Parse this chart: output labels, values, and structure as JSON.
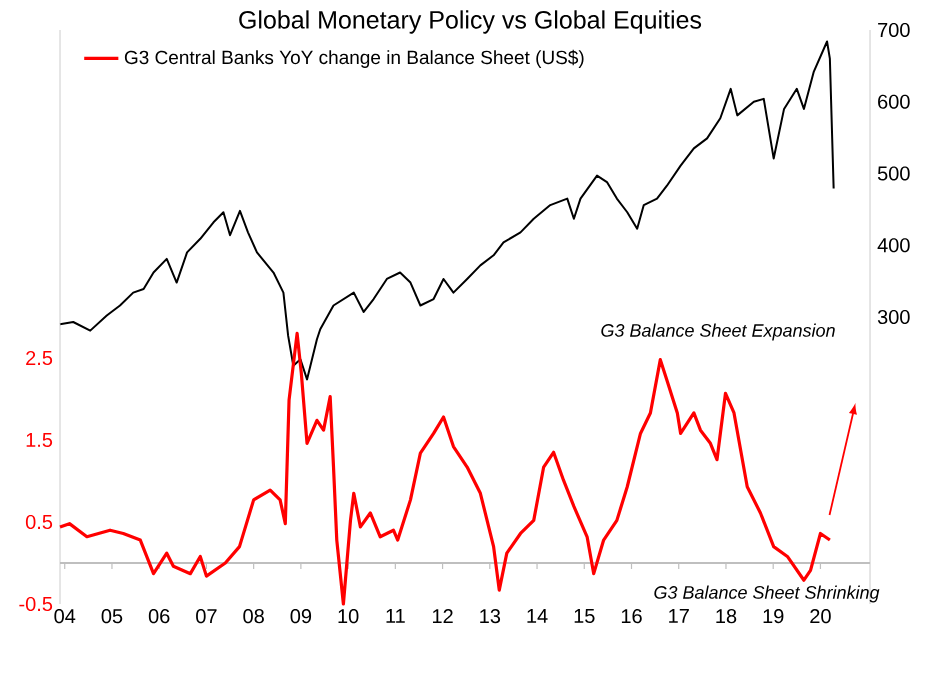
{
  "chart_data": {
    "type": "line",
    "title": "Global Monetary Policy vs Global Equities",
    "xlim": [
      2003.9,
      2021.05
    ],
    "xticks": [
      {
        "value": 2004,
        "label": "04"
      },
      {
        "value": 2005,
        "label": "05"
      },
      {
        "value": 2006,
        "label": "06"
      },
      {
        "value": 2007,
        "label": "07"
      },
      {
        "value": 2008,
        "label": "08"
      },
      {
        "value": 2009,
        "label": "09"
      },
      {
        "value": 2010,
        "label": "10"
      },
      {
        "value": 2011,
        "label": "11"
      },
      {
        "value": 2012,
        "label": "12"
      },
      {
        "value": 2013,
        "label": "13"
      },
      {
        "value": 2014,
        "label": "14"
      },
      {
        "value": 2015,
        "label": "15"
      },
      {
        "value": 2016,
        "label": "16"
      },
      {
        "value": 2017,
        "label": "17"
      },
      {
        "value": 2018,
        "label": "18"
      },
      {
        "value": 2019,
        "label": "19"
      },
      {
        "value": 2020,
        "label": "20"
      }
    ],
    "ylim": [
      -0.5,
      6.5
    ],
    "yticks": [
      -0.5,
      0.5,
      1.5,
      2.5
    ],
    "y2lim": [
      -100,
      700
    ],
    "y2ticks": [
      300,
      400,
      500,
      600,
      700
    ],
    "legend": "top left",
    "grid": false,
    "annotations": [
      "G3 Balance Sheet Expansion",
      "G3 Balance Sheet Shrinking"
    ],
    "series": [
      {
        "name": "G3 Central Banks YoY change in Balance Sheet (US$)",
        "color": "#ff0000",
        "x": [
          2003.9,
          2004.1,
          2004.47,
          2004.96,
          2005.24,
          2005.6,
          2005.88,
          2006.16,
          2006.3,
          2006.66,
          2006.87,
          2007.0,
          2007.4,
          2007.7,
          2008.0,
          2008.35,
          2008.56,
          2008.67,
          2008.75,
          2008.92,
          2009.01,
          2009.13,
          2009.34,
          2009.48,
          2009.62,
          2009.69,
          2009.76,
          2009.9,
          2010.05,
          2010.12,
          2010.26,
          2010.47,
          2010.68,
          2010.96,
          2011.05,
          2011.32,
          2011.53,
          2011.81,
          2012.02,
          2012.23,
          2012.52,
          2012.8,
          2013.08,
          2013.2,
          2013.36,
          2013.65,
          2013.93,
          2014.14,
          2014.35,
          2014.56,
          2014.78,
          2015.06,
          2015.2,
          2015.41,
          2015.69,
          2015.91,
          2016.19,
          2016.4,
          2016.61,
          2016.75,
          2016.97,
          2017.04,
          2017.32,
          2017.46,
          2017.67,
          2017.81,
          2017.99,
          2018.17,
          2018.45,
          2018.73,
          2019.01,
          2019.3,
          2019.65,
          2019.79,
          2020.0,
          2020.2
        ],
        "values": [
          0.44,
          0.48,
          0.32,
          0.4,
          0.36,
          0.28,
          -0.13,
          0.12,
          -0.04,
          -0.13,
          0.08,
          -0.16,
          0.0,
          0.2,
          0.77,
          0.89,
          0.77,
          0.48,
          1.99,
          2.8,
          2.31,
          1.46,
          1.74,
          1.62,
          2.03,
          1.18,
          0.28,
          -0.5,
          0.52,
          0.85,
          0.44,
          0.61,
          0.32,
          0.4,
          0.28,
          0.77,
          1.34,
          1.58,
          1.78,
          1.42,
          1.17,
          0.85,
          0.2,
          -0.33,
          0.12,
          0.36,
          0.52,
          1.17,
          1.35,
          1.01,
          0.69,
          0.32,
          -0.13,
          0.28,
          0.52,
          0.93,
          1.58,
          1.83,
          2.48,
          2.23,
          1.83,
          1.58,
          1.83,
          1.62,
          1.46,
          1.26,
          2.07,
          1.83,
          0.93,
          0.61,
          0.2,
          0.08,
          -0.21,
          -0.09,
          0.36,
          0.28
        ]
      },
      {
        "color": "#000000",
        "axis": "y2",
        "x": [
          2003.9,
          2004.18,
          2004.54,
          2004.89,
          2005.17,
          2005.45,
          2005.67,
          2005.88,
          2006.16,
          2006.37,
          2006.59,
          2006.87,
          2007.15,
          2007.36,
          2007.5,
          2007.71,
          2007.88,
          2008.07,
          2008.42,
          2008.63,
          2008.73,
          2008.84,
          2008.99,
          2009.13,
          2009.34,
          2009.41,
          2009.69,
          2010.12,
          2010.33,
          2010.54,
          2010.82,
          2011.1,
          2011.32,
          2011.53,
          2011.81,
          2012.02,
          2012.23,
          2012.52,
          2012.8,
          2013.08,
          2013.29,
          2013.65,
          2013.93,
          2014.28,
          2014.64,
          2014.78,
          2014.92,
          2015.27,
          2015.48,
          2015.69,
          2015.91,
          2016.12,
          2016.26,
          2016.54,
          2016.75,
          2017.04,
          2017.32,
          2017.6,
          2017.88,
          2018.1,
          2018.24,
          2018.59,
          2018.8,
          2019.01,
          2019.23,
          2019.5,
          2019.65,
          2019.86,
          2020.14,
          2020.2,
          2020.28
        ],
        "values": [
          290,
          293,
          281,
          302,
          316,
          334,
          339,
          362,
          381,
          348,
          390,
          409,
          432,
          446,
          414,
          448,
          418,
          390,
          362,
          334,
          274,
          232,
          241,
          213,
          269,
          283,
          316,
          334,
          307,
          325,
          353,
          362,
          348,
          316,
          325,
          353,
          334,
          353,
          372,
          386,
          404,
          418,
          437,
          456,
          465,
          437,
          465,
          497,
          488,
          465,
          446,
          423,
          456,
          465,
          483,
          511,
          535,
          549,
          577,
          618,
          581,
          600,
          604,
          521,
          590,
          618,
          590,
          642,
          684,
          660,
          479
        ]
      }
    ]
  }
}
